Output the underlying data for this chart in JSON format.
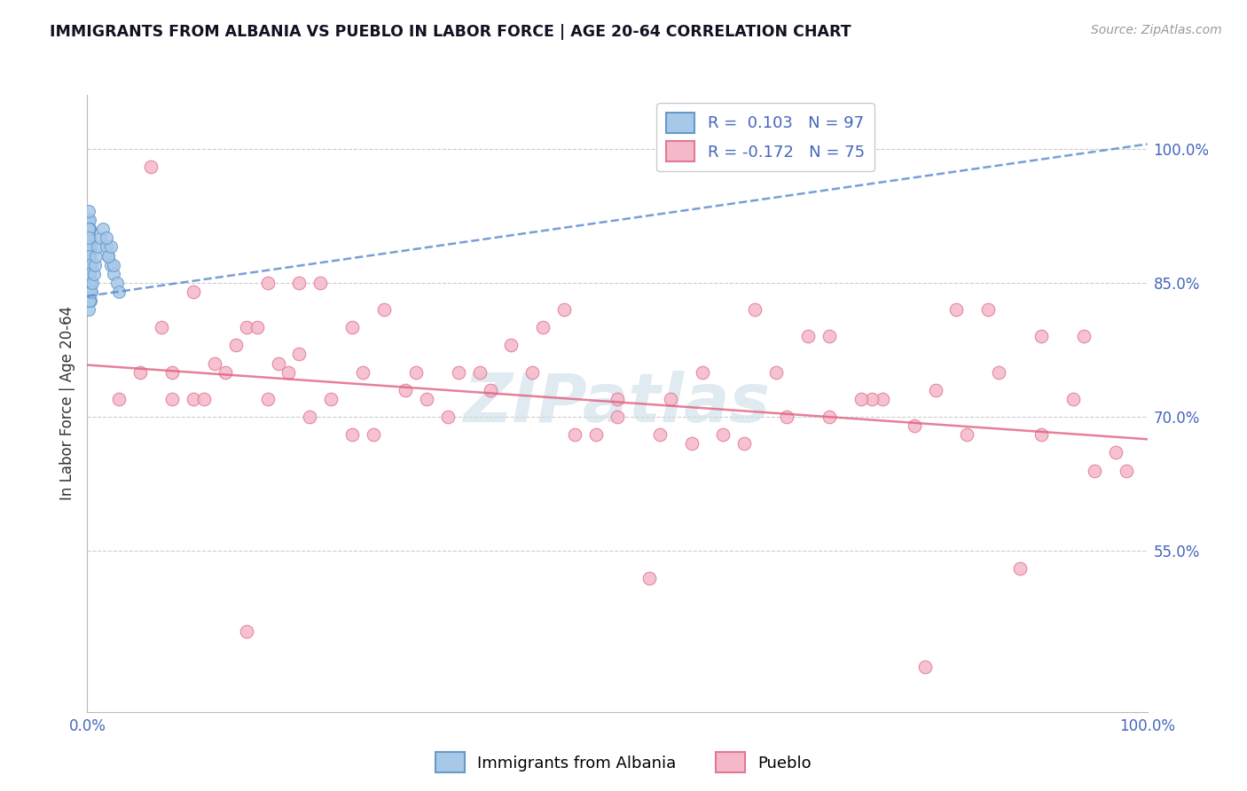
{
  "title": "IMMIGRANTS FROM ALBANIA VS PUEBLO IN LABOR FORCE | AGE 20-64 CORRELATION CHART",
  "source_text": "Source: ZipAtlas.com",
  "ylabel": "In Labor Force | Age 20-64",
  "xlim": [
    0.0,
    1.0
  ],
  "ylim": [
    0.37,
    1.06
  ],
  "yticks": [
    0.55,
    0.7,
    0.85,
    1.0
  ],
  "ytick_labels": [
    "55.0%",
    "70.0%",
    "85.0%",
    "100.0%"
  ],
  "xticks": [
    0.0,
    1.0
  ],
  "xtick_labels": [
    "0.0%",
    "100.0%"
  ],
  "blue_color": "#a8c8e8",
  "blue_edge": "#6699cc",
  "pink_color": "#f5b8c8",
  "pink_edge": "#e07898",
  "trend_blue_color": "#5588cc",
  "trend_pink_color": "#e06080",
  "watermark": "ZIPatlas",
  "watermark_color": "#ccdde8",
  "grid_color": "#cccccc",
  "title_color": "#111122",
  "axis_label_color": "#333333",
  "tick_label_color": "#4466bb",
  "legend_r1": "R =  0.103",
  "legend_n1": "N = 97",
  "legend_r2": "R = -0.172",
  "legend_n2": "N = 75",
  "albania_x": [
    0.001,
    0.002,
    0.001,
    0.002,
    0.003,
    0.001,
    0.002,
    0.001,
    0.003,
    0.002,
    0.001,
    0.002,
    0.001,
    0.002,
    0.001,
    0.003,
    0.002,
    0.001,
    0.002,
    0.001,
    0.002,
    0.001,
    0.002,
    0.001,
    0.002,
    0.003,
    0.001,
    0.002,
    0.001,
    0.002,
    0.001,
    0.002,
    0.001,
    0.002,
    0.001,
    0.002,
    0.001,
    0.002,
    0.003,
    0.001,
    0.002,
    0.001,
    0.002,
    0.001,
    0.002,
    0.001,
    0.002,
    0.003,
    0.001,
    0.002,
    0.001,
    0.002,
    0.001,
    0.002,
    0.001,
    0.003,
    0.002,
    0.001,
    0.002,
    0.001,
    0.002,
    0.001,
    0.002,
    0.001,
    0.003,
    0.002,
    0.001,
    0.002,
    0.001,
    0.002,
    0.001,
    0.002,
    0.001,
    0.002,
    0.003,
    0.001,
    0.002,
    0.001,
    0.002,
    0.004,
    0.005,
    0.006,
    0.007,
    0.008,
    0.01,
    0.012,
    0.015,
    0.018,
    0.02,
    0.022,
    0.025,
    0.028,
    0.03,
    0.025,
    0.02,
    0.022,
    0.018
  ],
  "albania_y": [
    0.92,
    0.89,
    0.86,
    0.9,
    0.87,
    0.85,
    0.91,
    0.88,
    0.84,
    0.87,
    0.9,
    0.85,
    0.88,
    0.91,
    0.87,
    0.84,
    0.86,
    0.89,
    0.92,
    0.85,
    0.88,
    0.84,
    0.87,
    0.9,
    0.86,
    0.83,
    0.89,
    0.85,
    0.88,
    0.91,
    0.87,
    0.84,
    0.86,
    0.89,
    0.85,
    0.88,
    0.91,
    0.87,
    0.84,
    0.86,
    0.89,
    0.85,
    0.88,
    0.91,
    0.87,
    0.84,
    0.86,
    0.89,
    0.85,
    0.88,
    0.84,
    0.87,
    0.9,
    0.86,
    0.83,
    0.89,
    0.85,
    0.82,
    0.87,
    0.84,
    0.9,
    0.86,
    0.83,
    0.89,
    0.85,
    0.88,
    0.91,
    0.87,
    0.84,
    0.86,
    0.89,
    0.85,
    0.88,
    0.84,
    0.87,
    0.9,
    0.86,
    0.93,
    0.83,
    0.84,
    0.85,
    0.86,
    0.87,
    0.88,
    0.89,
    0.9,
    0.91,
    0.89,
    0.88,
    0.87,
    0.86,
    0.85,
    0.84,
    0.87,
    0.88,
    0.89,
    0.9
  ],
  "albania_trend_x": [
    0.0,
    1.0
  ],
  "albania_trend_y": [
    0.835,
    1.005
  ],
  "pueblo_x": [
    0.03,
    0.06,
    0.1,
    0.14,
    0.17,
    0.2,
    0.22,
    0.25,
    0.13,
    0.28,
    0.1,
    0.17,
    0.08,
    0.15,
    0.2,
    0.18,
    0.25,
    0.3,
    0.35,
    0.4,
    0.45,
    0.5,
    0.55,
    0.6,
    0.65,
    0.7,
    0.75,
    0.8,
    0.85,
    0.9,
    0.95,
    0.98,
    0.05,
    0.08,
    0.12,
    0.16,
    0.19,
    0.23,
    0.27,
    0.31,
    0.34,
    0.38,
    0.42,
    0.46,
    0.5,
    0.54,
    0.58,
    0.62,
    0.66,
    0.7,
    0.74,
    0.78,
    0.82,
    0.86,
    0.9,
    0.94,
    0.97,
    0.07,
    0.11,
    0.15,
    0.21,
    0.26,
    0.32,
    0.37,
    0.43,
    0.48,
    0.53,
    0.57,
    0.63,
    0.68,
    0.73,
    0.79,
    0.83,
    0.88,
    0.93
  ],
  "pueblo_y": [
    0.72,
    0.98,
    0.84,
    0.78,
    0.72,
    0.85,
    0.85,
    0.8,
    0.75,
    0.82,
    0.72,
    0.85,
    0.75,
    0.8,
    0.77,
    0.76,
    0.68,
    0.73,
    0.75,
    0.78,
    0.82,
    0.7,
    0.72,
    0.68,
    0.75,
    0.7,
    0.72,
    0.73,
    0.82,
    0.79,
    0.64,
    0.64,
    0.75,
    0.72,
    0.76,
    0.8,
    0.75,
    0.72,
    0.68,
    0.75,
    0.7,
    0.73,
    0.75,
    0.68,
    0.72,
    0.68,
    0.75,
    0.67,
    0.7,
    0.79,
    0.72,
    0.69,
    0.82,
    0.75,
    0.68,
    0.79,
    0.66,
    0.8,
    0.72,
    0.46,
    0.7,
    0.75,
    0.72,
    0.75,
    0.8,
    0.68,
    0.52,
    0.67,
    0.82,
    0.79,
    0.72,
    0.42,
    0.68,
    0.53,
    0.72
  ],
  "pueblo_trend_x": [
    0.0,
    1.0
  ],
  "pueblo_trend_y": [
    0.758,
    0.675
  ]
}
